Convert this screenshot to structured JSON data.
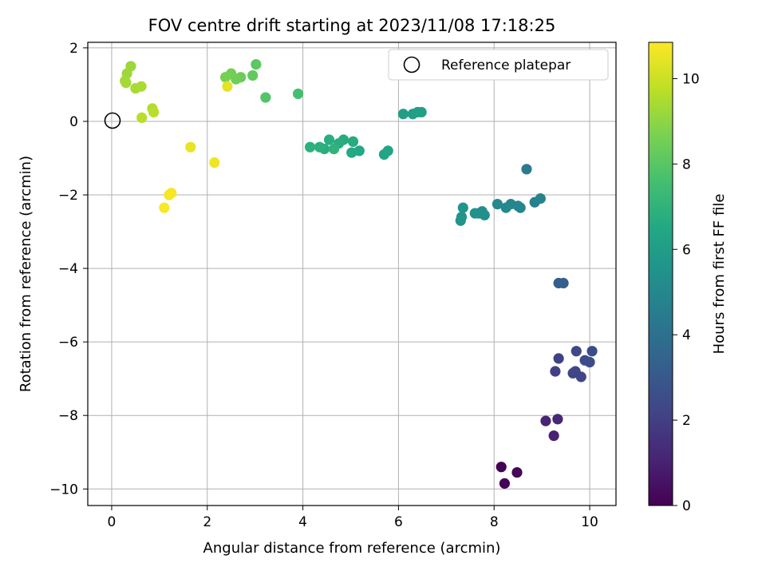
{
  "chart_data": {
    "type": "scatter",
    "title": "FOV centre drift starting at 2023/11/08 17:18:25",
    "xlabel": "Angular distance from reference (arcmin)",
    "ylabel": "Rotation from reference (arcmin)",
    "xlim": [
      -0.5,
      10.55
    ],
    "ylim": [
      -10.45,
      2.15
    ],
    "xticks": [
      0,
      2,
      4,
      6,
      8,
      10
    ],
    "yticks": [
      2,
      0,
      -2,
      -4,
      -6,
      -8,
      -10
    ],
    "xtick_labels": [
      "0",
      "2",
      "4",
      "6",
      "8",
      "10"
    ],
    "ytick_labels": [
      "2",
      "0",
      "−2",
      "−4",
      "−6",
      "−8",
      "−10"
    ],
    "grid": true,
    "legend": {
      "location": "upper-right",
      "entries": [
        "Reference platepar"
      ]
    },
    "reference_point": {
      "x": 0,
      "y": 0,
      "label": "Reference platepar"
    },
    "colorbar": {
      "label": "Hours from first FF file",
      "colormap": "viridis",
      "range": [
        0,
        10.85
      ],
      "ticks": [
        0,
        2,
        4,
        6,
        8,
        10
      ],
      "tick_labels": [
        "0",
        "2",
        "4",
        "6",
        "8",
        "10"
      ]
    },
    "points": [
      {
        "x": 8.15,
        "y": -9.4,
        "h": 0.0
      },
      {
        "x": 8.22,
        "y": -9.85,
        "h": 0.1
      },
      {
        "x": 8.48,
        "y": -9.55,
        "h": 0.2
      },
      {
        "x": 9.25,
        "y": -8.55,
        "h": 1.0
      },
      {
        "x": 9.08,
        "y": -8.15,
        "h": 1.1
      },
      {
        "x": 9.33,
        "y": -8.1,
        "h": 1.2
      },
      {
        "x": 9.28,
        "y": -6.8,
        "h": 2.0
      },
      {
        "x": 9.35,
        "y": -6.45,
        "h": 2.1
      },
      {
        "x": 9.65,
        "y": -6.85,
        "h": 2.2
      },
      {
        "x": 9.7,
        "y": -6.8,
        "h": 2.25
      },
      {
        "x": 9.82,
        "y": -6.95,
        "h": 2.3
      },
      {
        "x": 9.72,
        "y": -6.25,
        "h": 2.35
      },
      {
        "x": 9.9,
        "y": -6.5,
        "h": 2.4
      },
      {
        "x": 10.0,
        "y": -6.55,
        "h": 2.45
      },
      {
        "x": 10.05,
        "y": -6.25,
        "h": 2.5
      },
      {
        "x": 9.35,
        "y": -4.4,
        "h": 3.2
      },
      {
        "x": 9.45,
        "y": -4.4,
        "h": 3.3
      },
      {
        "x": 8.68,
        "y": -1.3,
        "h": 4.5
      },
      {
        "x": 8.85,
        "y": -2.2,
        "h": 4.7
      },
      {
        "x": 8.97,
        "y": -2.1,
        "h": 4.8
      },
      {
        "x": 8.55,
        "y": -2.35,
        "h": 4.9
      },
      {
        "x": 8.5,
        "y": -2.3,
        "h": 4.95
      },
      {
        "x": 8.35,
        "y": -2.25,
        "h": 5.0
      },
      {
        "x": 8.25,
        "y": -2.35,
        "h": 5.05
      },
      {
        "x": 8.07,
        "y": -2.25,
        "h": 5.1
      },
      {
        "x": 7.75,
        "y": -2.45,
        "h": 5.3
      },
      {
        "x": 7.8,
        "y": -2.55,
        "h": 5.35
      },
      {
        "x": 7.68,
        "y": -2.5,
        "h": 5.4
      },
      {
        "x": 7.6,
        "y": -2.5,
        "h": 5.45
      },
      {
        "x": 7.32,
        "y": -2.6,
        "h": 5.5
      },
      {
        "x": 7.3,
        "y": -2.7,
        "h": 5.55
      },
      {
        "x": 7.35,
        "y": -2.35,
        "h": 5.6
      },
      {
        "x": 6.1,
        "y": 0.2,
        "h": 6.0
      },
      {
        "x": 6.3,
        "y": 0.2,
        "h": 6.05
      },
      {
        "x": 6.4,
        "y": 0.25,
        "h": 6.1
      },
      {
        "x": 6.48,
        "y": 0.25,
        "h": 6.15
      },
      {
        "x": 5.78,
        "y": -0.8,
        "h": 6.3
      },
      {
        "x": 5.7,
        "y": -0.9,
        "h": 6.35
      },
      {
        "x": 5.18,
        "y": -0.8,
        "h": 6.5
      },
      {
        "x": 5.02,
        "y": -0.85,
        "h": 6.55
      },
      {
        "x": 5.05,
        "y": -0.55,
        "h": 6.6
      },
      {
        "x": 4.85,
        "y": -0.5,
        "h": 6.65
      },
      {
        "x": 4.75,
        "y": -0.6,
        "h": 6.7
      },
      {
        "x": 4.55,
        "y": -0.5,
        "h": 6.75
      },
      {
        "x": 4.45,
        "y": -0.75,
        "h": 6.8
      },
      {
        "x": 4.35,
        "y": -0.7,
        "h": 6.85
      },
      {
        "x": 4.15,
        "y": -0.7,
        "h": 6.9
      },
      {
        "x": 4.65,
        "y": -0.75,
        "h": 7.0
      },
      {
        "x": 3.9,
        "y": 0.75,
        "h": 7.6
      },
      {
        "x": 3.22,
        "y": 0.65,
        "h": 7.9
      },
      {
        "x": 3.02,
        "y": 1.55,
        "h": 8.1
      },
      {
        "x": 2.95,
        "y": 1.25,
        "h": 8.2
      },
      {
        "x": 2.7,
        "y": 1.2,
        "h": 8.4
      },
      {
        "x": 2.6,
        "y": 1.15,
        "h": 8.45
      },
      {
        "x": 2.5,
        "y": 1.3,
        "h": 8.5
      },
      {
        "x": 2.38,
        "y": 1.2,
        "h": 8.6
      },
      {
        "x": 2.42,
        "y": 0.95,
        "h": 10.4
      },
      {
        "x": 0.4,
        "y": 1.5,
        "h": 9.2
      },
      {
        "x": 0.32,
        "y": 1.3,
        "h": 9.25
      },
      {
        "x": 0.28,
        "y": 1.1,
        "h": 9.3
      },
      {
        "x": 0.3,
        "y": 1.05,
        "h": 9.35
      },
      {
        "x": 0.5,
        "y": 0.9,
        "h": 9.4
      },
      {
        "x": 0.62,
        "y": 0.95,
        "h": 9.45
      },
      {
        "x": 0.85,
        "y": 0.35,
        "h": 9.6
      },
      {
        "x": 0.88,
        "y": 0.25,
        "h": 9.65
      },
      {
        "x": 0.63,
        "y": 0.1,
        "h": 9.7
      },
      {
        "x": 1.65,
        "y": -0.7,
        "h": 10.5
      },
      {
        "x": 2.15,
        "y": -1.12,
        "h": 10.6
      },
      {
        "x": 1.2,
        "y": -2.0,
        "h": 10.7
      },
      {
        "x": 1.25,
        "y": -1.95,
        "h": 10.75
      },
      {
        "x": 1.1,
        "y": -2.35,
        "h": 10.8
      }
    ]
  }
}
